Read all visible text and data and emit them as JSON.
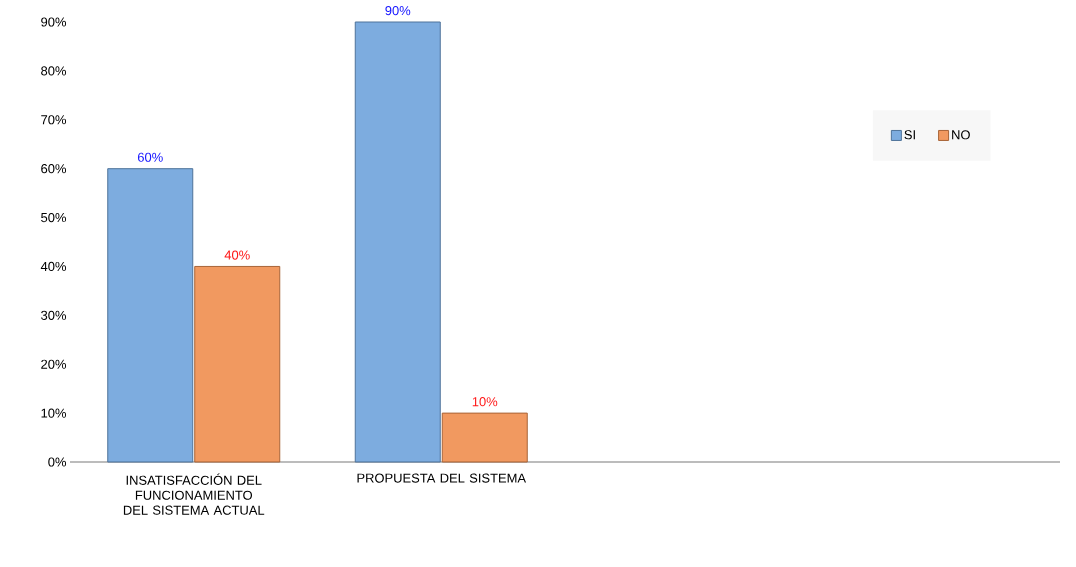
{
  "chart_data": {
    "type": "bar",
    "categories": [
      "INSATISFACCIÓN DEL FUNCIONAMIENTO DEL SISTEMA ACTUAL",
      "PROPUESTA DEL SISTEMA"
    ],
    "series": [
      {
        "name": "SI",
        "color": "#6fa3dc",
        "values": [
          60,
          90
        ],
        "value_labels": [
          "60%",
          "90%"
        ]
      },
      {
        "name": "NO",
        "color": "#f08e4f",
        "values": [
          40,
          10
        ],
        "value_labels": [
          "40%",
          "10%"
        ]
      }
    ],
    "ylim": [
      0,
      90
    ],
    "yticks": [
      {
        "value": 0,
        "label": "0%"
      },
      {
        "value": 10,
        "label": "10%"
      },
      {
        "value": 20,
        "label": "20%"
      },
      {
        "value": 30,
        "label": "30%"
      },
      {
        "value": 40,
        "label": "40%"
      },
      {
        "value": 50,
        "label": "50%"
      },
      {
        "value": 60,
        "label": "60%"
      },
      {
        "value": 70,
        "label": "70%"
      },
      {
        "value": 80,
        "label": "80%"
      },
      {
        "value": 90,
        "label": "90%"
      }
    ],
    "legend": "top right",
    "grid": false
  }
}
